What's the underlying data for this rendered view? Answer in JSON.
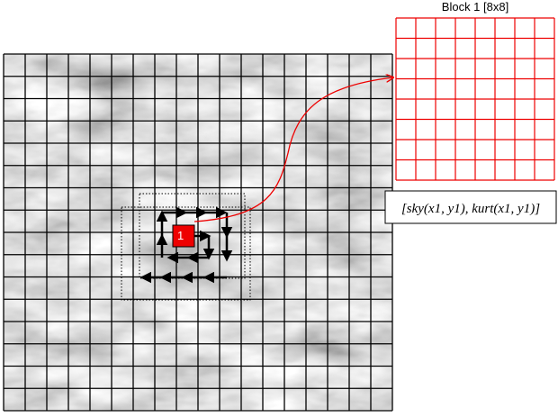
{
  "block_title": "Block 1 [8x8]",
  "block_label": "1",
  "formula": "[sky(x1, y1), kurt(x1, y1)]"
}
